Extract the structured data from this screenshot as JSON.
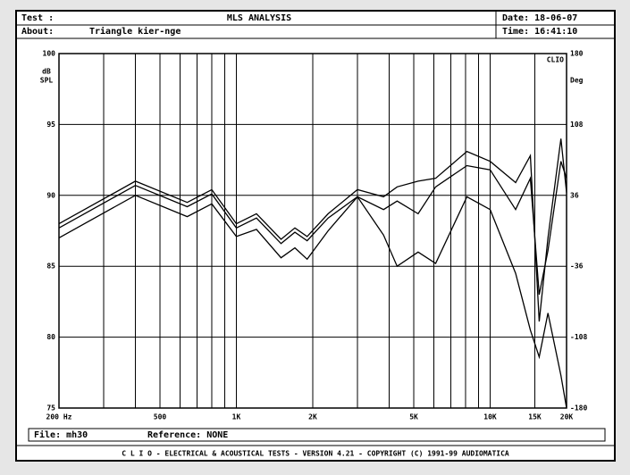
{
  "header": {
    "test": "Test :",
    "title": "MLS ANALYSIS",
    "date": "Date: 18-06-07",
    "about": "About:",
    "about_text": "Triangle kier-nge",
    "time": "Time: 16:41:10"
  },
  "chart_data": {
    "type": "line",
    "scale_mark": "CLIO",
    "y_label": "dB",
    "y_unit": "SPL",
    "y2_label": "Deg",
    "x_log": true,
    "grid": true,
    "xlim": [
      200,
      20000
    ],
    "xticks": [
      {
        "value": 200,
        "label": "200 Hz"
      },
      500,
      {
        "value": 1000,
        "label": "1K"
      },
      {
        "value": 2000,
        "label": "2K"
      },
      {
        "value": 5000,
        "label": "5K"
      },
      {
        "value": 10000,
        "label": "10K"
      },
      {
        "value": 15000,
        "label": "15K"
      },
      {
        "value": 20000,
        "label": "20K"
      }
    ],
    "xgrid": [
      200,
      300,
      400,
      500,
      600,
      700,
      800,
      900,
      1000,
      2000,
      3000,
      4000,
      5000,
      6000,
      7000,
      8000,
      9000,
      10000,
      15000,
      20000
    ],
    "ylim": [
      75,
      100
    ],
    "yticks": [
      100,
      95,
      90,
      85,
      80,
      75
    ],
    "y2lim": [
      -180,
      180
    ],
    "y2ticks": [
      180,
      108,
      36,
      -36,
      -108,
      -180
    ],
    "x": [
      200,
      400,
      640,
      800,
      1000,
      1200,
      1500,
      1700,
      1900,
      2300,
      3000,
      3800,
      4300,
      5200,
      6100,
      8100,
      10000,
      12600,
      14400,
      15600,
      16900,
      19000,
      20000
    ],
    "series": [
      {
        "color": "#000000",
        "values": [
          88.0,
          91.0,
          89.5,
          90.4,
          88.0,
          88.7,
          86.9,
          87.7,
          87.1,
          88.7,
          90.4,
          89.9,
          90.6,
          91.0,
          91.2,
          93.1,
          92.4,
          90.9,
          92.8,
          81.1,
          87.0,
          94.0,
          90.2
        ]
      },
      {
        "color": "#000000",
        "values": [
          87.7,
          90.7,
          89.2,
          90.1,
          87.7,
          88.4,
          86.6,
          87.4,
          86.8,
          88.4,
          89.9,
          89.0,
          89.6,
          88.7,
          90.6,
          92.1,
          91.8,
          89.0,
          91.2,
          83.0,
          86.1,
          92.4,
          91.2
        ]
      },
      {
        "color": "#000000",
        "values": [
          87.0,
          90.0,
          88.5,
          89.4,
          87.1,
          87.6,
          85.6,
          86.3,
          85.5,
          87.5,
          89.9,
          87.2,
          85.0,
          86.0,
          85.2,
          89.9,
          89.0,
          84.5,
          80.5,
          78.6,
          81.7,
          77.3,
          75.0
        ]
      }
    ]
  },
  "footer": {
    "file": "File: mh30",
    "reference": "Reference: NONE",
    "banner": "C L I O  -  ELECTRICAL & ACOUSTICAL TESTS  -  VERSION 4.21  -  COPYRIGHT (C) 1991-99 AUDIOMATICA"
  }
}
